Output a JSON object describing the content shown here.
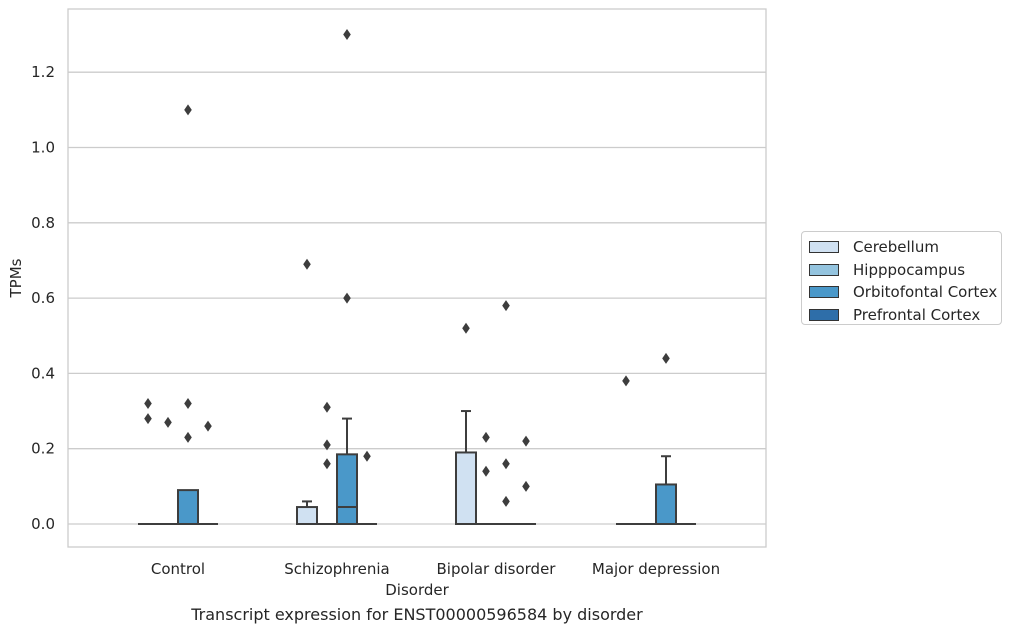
{
  "figure": {
    "caption": "Transcript expression for ENST00000596584 by disorder"
  },
  "chart_data": {
    "type": "box",
    "title": "",
    "xlabel": "Disorder",
    "ylabel": "TPMs",
    "categories": [
      "Control",
      "Schizophrenia",
      "Bipolar disorder",
      "Major depression"
    ],
    "ylim": [
      -0.065,
      1.365
    ],
    "yticks": [
      0.0,
      0.2,
      0.4,
      0.6,
      0.8,
      1.0,
      1.2
    ],
    "ytick_labels": [
      "0.0",
      "0.2",
      "0.4",
      "0.6",
      "0.8",
      "1.0",
      "1.2"
    ],
    "grid": "horizontal",
    "legend_position": "outside-right",
    "series": [
      {
        "name": "Cerebellum",
        "color": "#d0e1f2",
        "boxes": [
          {
            "q1": 0,
            "median": 0,
            "q3": 0,
            "whisker_low": 0,
            "whisker_high": 0,
            "outliers": [
              0.32,
              0.28
            ]
          },
          {
            "q1": 0,
            "median": 0,
            "q3": 0.045,
            "whisker_low": 0,
            "whisker_high": 0.06,
            "outliers": [
              0.69
            ]
          },
          {
            "q1": 0,
            "median": 0,
            "q3": 0.19,
            "whisker_low": 0,
            "whisker_high": 0.3,
            "outliers": [
              0.52
            ]
          },
          {
            "q1": 0,
            "median": 0,
            "q3": 0,
            "whisker_low": 0,
            "whisker_high": 0,
            "outliers": [
              0.38
            ]
          }
        ]
      },
      {
        "name": "Hipppocampus",
        "color": "#94c4df",
        "boxes": [
          {
            "q1": 0,
            "median": 0,
            "q3": 0,
            "whisker_low": 0,
            "whisker_high": 0,
            "outliers": [
              0.27
            ]
          },
          {
            "q1": 0,
            "median": 0,
            "q3": 0,
            "whisker_low": 0,
            "whisker_high": 0,
            "outliers": [
              0.31,
              0.21,
              0.16
            ]
          },
          {
            "q1": 0,
            "median": 0,
            "q3": 0,
            "whisker_low": 0,
            "whisker_high": 0,
            "outliers": [
              0.23,
              0.14
            ]
          },
          {
            "q1": 0,
            "median": 0,
            "q3": 0,
            "whisker_low": 0,
            "whisker_high": 0,
            "outliers": []
          }
        ]
      },
      {
        "name": "Orbitofontal Cortex",
        "color": "#4a98c9",
        "boxes": [
          {
            "q1": 0,
            "median": 0,
            "q3": 0.09,
            "whisker_low": 0,
            "whisker_high": 0.09,
            "outliers": [
              1.1,
              0.32,
              0.23
            ]
          },
          {
            "q1": 0,
            "median": 0.045,
            "q3": 0.185,
            "whisker_low": 0,
            "whisker_high": 0.28,
            "outliers": [
              1.3,
              0.6
            ]
          },
          {
            "q1": 0,
            "median": 0,
            "q3": 0,
            "whisker_low": 0,
            "whisker_high": 0,
            "outliers": [
              0.58,
              0.16,
              0.06
            ]
          },
          {
            "q1": 0,
            "median": 0,
            "q3": 0.105,
            "whisker_low": 0,
            "whisker_high": 0.18,
            "outliers": [
              0.44
            ]
          }
        ]
      },
      {
        "name": "Prefrontal Cortex",
        "color": "#2e6ea9",
        "boxes": [
          {
            "q1": 0,
            "median": 0,
            "q3": 0,
            "whisker_low": 0,
            "whisker_high": 0,
            "outliers": [
              0.26
            ]
          },
          {
            "q1": 0,
            "median": 0,
            "q3": 0,
            "whisker_low": 0,
            "whisker_high": 0,
            "outliers": [
              0.18
            ]
          },
          {
            "q1": 0,
            "median": 0,
            "q3": 0,
            "whisker_low": 0,
            "whisker_high": 0,
            "outliers": [
              0.22,
              0.1
            ]
          },
          {
            "q1": 0,
            "median": 0,
            "q3": 0,
            "whisker_low": 0,
            "whisker_high": 0,
            "outliers": []
          }
        ]
      }
    ]
  }
}
